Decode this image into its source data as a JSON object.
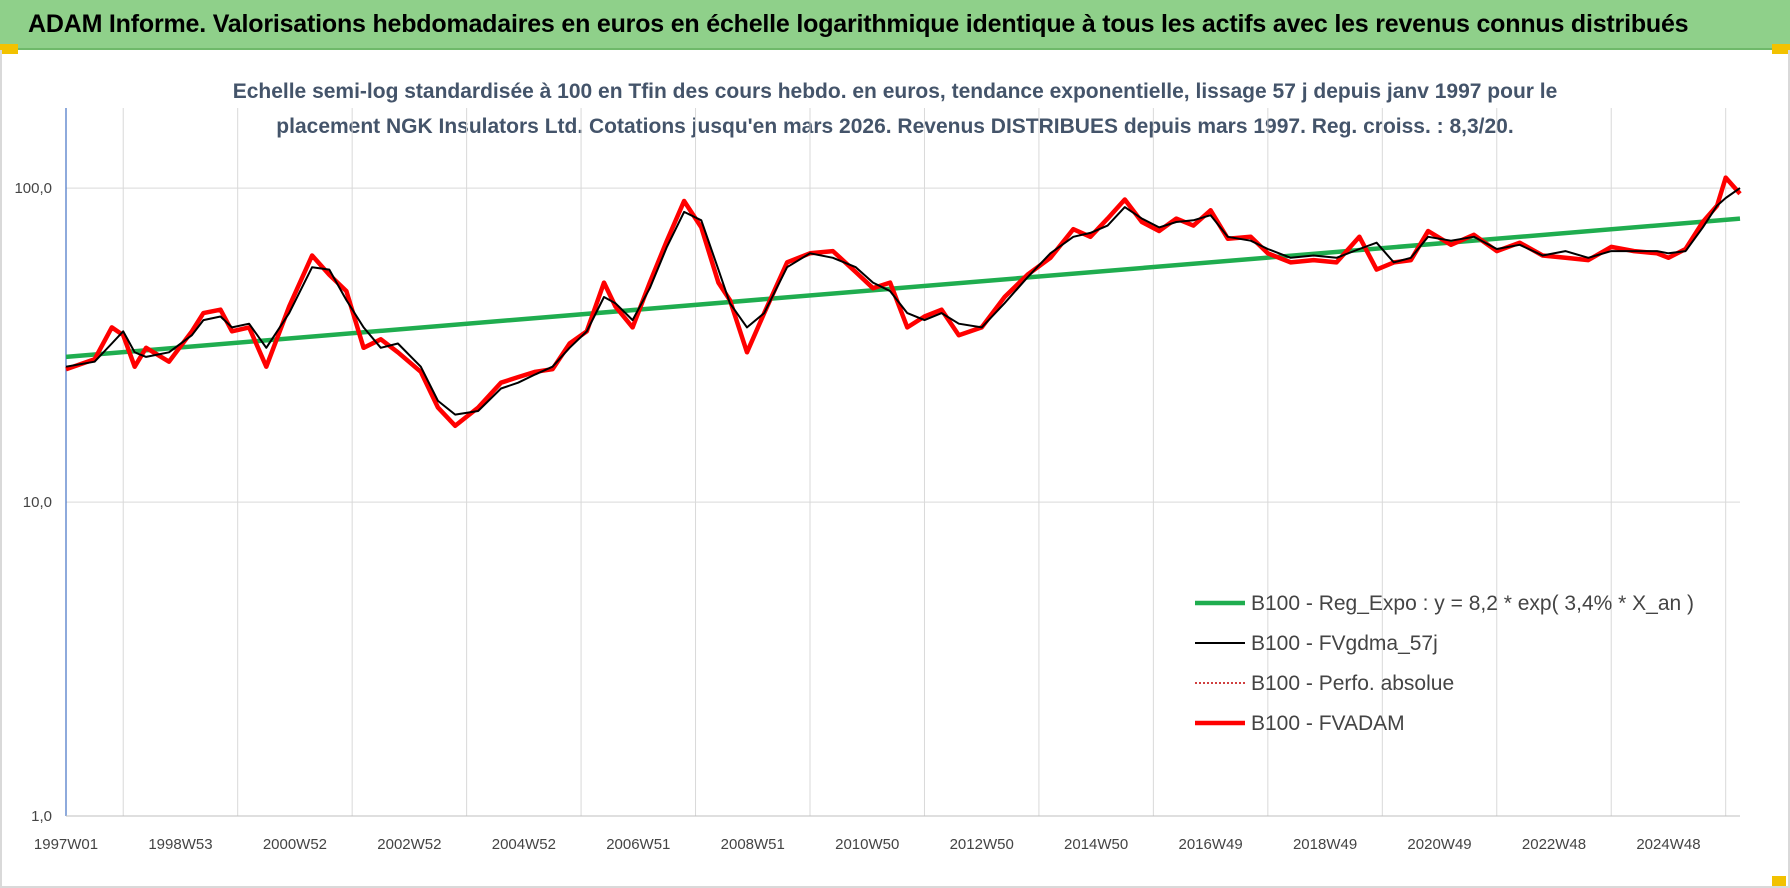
{
  "header": {
    "title": "ADAM Informe. Valorisations hebdomadaires en euros en échelle logarithmique identique à tous les actifs avec les revenus connus distribués",
    "accent_color": "#8fd08a",
    "corner_color": "#f2c200"
  },
  "chart_data": {
    "type": "line",
    "title_line1": "Echelle semi-log standardisée à 100 en Tfin des cours hebdo. en euros, tendance exponentielle, lissage 57 j depuis janv 1997 pour le",
    "title_line2": "placement NGK Insulators Ltd. Cotations jusqu'en mars 2026. Revenus DISTRIBUES depuis mars 1997. Reg. croiss. : 8,3/20.",
    "y_scale": "log",
    "ylim": [
      1,
      180
    ],
    "xlim": [
      1997.0,
      2026.25
    ],
    "y_ticks": [
      {
        "value": 1,
        "label": "1,0"
      },
      {
        "value": 10,
        "label": "10,0"
      },
      {
        "value": 100,
        "label": "100,0"
      }
    ],
    "x_ticks": [
      {
        "value": 1997.0,
        "label": "1997W01"
      },
      {
        "value": 1999.0,
        "label": "1998W53"
      },
      {
        "value": 2001.0,
        "label": "2000W52"
      },
      {
        "value": 2003.0,
        "label": "2002W52"
      },
      {
        "value": 2005.0,
        "label": "2004W52"
      },
      {
        "value": 2007.0,
        "label": "2006W51"
      },
      {
        "value": 2009.0,
        "label": "2008W51"
      },
      {
        "value": 2011.0,
        "label": "2010W50"
      },
      {
        "value": 2013.0,
        "label": "2012W50"
      },
      {
        "value": 2015.0,
        "label": "2014W50"
      },
      {
        "value": 2017.0,
        "label": "2016W49"
      },
      {
        "value": 2019.0,
        "label": "2018W49"
      },
      {
        "value": 2021.0,
        "label": "2020W49"
      },
      {
        "value": 2023.0,
        "label": "2022W48"
      },
      {
        "value": 2025.0,
        "label": "2024W48"
      }
    ],
    "grid": "vertical and horizontal",
    "legend_position": "bottom-right",
    "series": [
      {
        "name": "B100 - Reg_Expo : y = 8,2 * exp( 3,4% *  X_an )",
        "color": "#1fad4f",
        "style": "thick",
        "x": [
          1997.0,
          2026.25
        ],
        "y": [
          29,
          80
        ]
      },
      {
        "name": "B100 - FVgdma_57j",
        "color": "#000000",
        "style": "thin",
        "x": [
          1997.0,
          1997.5,
          1997.8,
          1998.0,
          1998.2,
          1998.4,
          1998.8,
          1999.2,
          1999.4,
          1999.7,
          1999.9,
          2000.2,
          2000.5,
          2000.9,
          2001.3,
          2001.6,
          2001.9,
          2002.2,
          2002.5,
          2002.8,
          2003.2,
          2003.5,
          2003.8,
          2004.2,
          2004.6,
          2004.9,
          2005.2,
          2005.5,
          2005.8,
          2006.1,
          2006.4,
          2006.6,
          2006.9,
          2007.2,
          2007.5,
          2007.8,
          2008.1,
          2008.4,
          2008.6,
          2008.9,
          2009.2,
          2009.6,
          2010.0,
          2010.4,
          2010.8,
          2011.1,
          2011.4,
          2011.7,
          2012.0,
          2012.3,
          2012.6,
          2013.0,
          2013.4,
          2013.8,
          2014.2,
          2014.6,
          2014.9,
          2015.2,
          2015.5,
          2015.8,
          2016.1,
          2016.4,
          2016.7,
          2017.0,
          2017.3,
          2017.7,
          2018.0,
          2018.4,
          2018.8,
          2019.2,
          2019.6,
          2019.9,
          2020.2,
          2020.5,
          2020.8,
          2021.2,
          2021.6,
          2022.0,
          2022.4,
          2022.8,
          2023.2,
          2023.6,
          2024.0,
          2024.4,
          2024.8,
          2025.0,
          2025.3,
          2025.6,
          2025.85,
          2026.0,
          2026.25
        ],
        "y": [
          27,
          28,
          32,
          35,
          30,
          29,
          30,
          34,
          38,
          39,
          36,
          37,
          31,
          40,
          56,
          55,
          44,
          36,
          31,
          32,
          27,
          21,
          19,
          19.5,
          23,
          24,
          25.5,
          27,
          31,
          35,
          45,
          43,
          38,
          48,
          65,
          84,
          79,
          55,
          43,
          36,
          40,
          56,
          62,
          60,
          56,
          50,
          47,
          40,
          38,
          40,
          37,
          36,
          43,
          52,
          62,
          70,
          72,
          76,
          87,
          80,
          75,
          78,
          79,
          82,
          70,
          68,
          64,
          60,
          61,
          60,
          64,
          67,
          58,
          60,
          70,
          68,
          70,
          64,
          66,
          61,
          63,
          60,
          63,
          63,
          63,
          62,
          63,
          75,
          88,
          93,
          100
        ]
      },
      {
        "name": "B100 - Perfo. absolue",
        "color": "#c00000",
        "style": "dotted",
        "x": [],
        "y": []
      },
      {
        "name": "B100 - FVADAM",
        "color": "#ff0000",
        "style": "thick",
        "x": [
          1997.0,
          1997.5,
          1997.8,
          1998.0,
          1998.2,
          1998.4,
          1998.8,
          1999.2,
          1999.4,
          1999.7,
          1999.9,
          2000.2,
          2000.5,
          2000.9,
          2001.3,
          2001.6,
          2001.9,
          2002.2,
          2002.5,
          2002.8,
          2003.2,
          2003.5,
          2003.8,
          2004.2,
          2004.6,
          2004.9,
          2005.2,
          2005.5,
          2005.8,
          2006.1,
          2006.4,
          2006.6,
          2006.9,
          2007.2,
          2007.5,
          2007.8,
          2008.1,
          2008.4,
          2008.6,
          2008.9,
          2009.2,
          2009.6,
          2010.0,
          2010.4,
          2010.8,
          2011.1,
          2011.4,
          2011.7,
          2012.0,
          2012.3,
          2012.6,
          2013.0,
          2013.4,
          2013.8,
          2014.2,
          2014.6,
          2014.9,
          2015.2,
          2015.5,
          2015.8,
          2016.1,
          2016.4,
          2016.7,
          2017.0,
          2017.3,
          2017.7,
          2018.0,
          2018.4,
          2018.8,
          2019.2,
          2019.6,
          2019.9,
          2020.2,
          2020.5,
          2020.8,
          2021.2,
          2021.6,
          2022.0,
          2022.4,
          2022.8,
          2023.2,
          2023.6,
          2024.0,
          2024.4,
          2024.8,
          2025.0,
          2025.3,
          2025.6,
          2025.85,
          2026.0,
          2026.25
        ],
        "y": [
          26.5,
          28.5,
          36,
          34,
          27,
          31,
          28,
          35,
          40,
          41,
          35,
          36,
          27,
          42,
          61,
          53,
          47,
          31,
          33,
          30,
          26,
          20,
          17.5,
          20,
          24,
          25,
          26,
          26.5,
          32,
          35,
          50,
          42,
          36,
          50,
          68,
          91,
          75,
          50,
          44,
          30,
          40,
          58,
          62,
          63,
          54,
          48,
          50,
          36,
          39,
          41,
          34,
          36,
          45,
          53,
          60,
          74,
          70,
          80,
          92,
          78,
          73,
          80,
          76,
          85,
          69,
          70,
          62,
          58,
          59,
          58,
          70,
          55,
          58,
          59,
          73,
          66,
          71,
          63,
          67,
          61,
          60,
          59,
          65,
          63,
          62,
          60,
          64,
          78,
          88,
          108,
          96
        ]
      }
    ]
  }
}
